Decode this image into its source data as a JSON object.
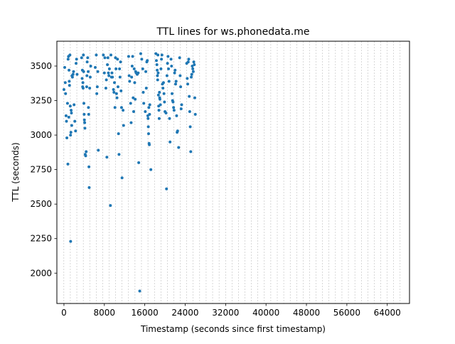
{
  "chart_data": {
    "type": "scatter",
    "title": "TTL lines for ws.phonedata.me",
    "xlabel": "Timestamp (seconds since first timestamp)",
    "ylabel": "TTL (seconds)",
    "xlim": [
      -1400,
      68400
    ],
    "ylim": [
      1780,
      3680
    ],
    "xticks": [
      0,
      8000,
      16000,
      24000,
      32000,
      40000,
      48000,
      56000,
      64000
    ],
    "xtick_labels": [
      "0",
      "8000",
      "16000",
      "24000",
      "32000",
      "40000",
      "48000",
      "56000",
      "64000"
    ],
    "yticks": [
      2000,
      2250,
      2500,
      2750,
      3000,
      3250,
      3500
    ],
    "ytick_labels": [
      "2000",
      "2250",
      "2500",
      "2750",
      "3000",
      "3250",
      "3500"
    ],
    "vlines": [
      -15,
      1265,
      2545,
      3825,
      5105,
      6385,
      7665,
      8945,
      10225,
      11505,
      12785,
      14065,
      15345,
      16625,
      17905,
      19185,
      20465,
      21745,
      23025,
      24305,
      25585,
      26865,
      28145,
      29425,
      30705,
      31985,
      33265,
      34545,
      35825,
      37105,
      38385,
      39665,
      40945,
      42225,
      43505,
      44785,
      46065,
      47345,
      48625,
      49905,
      51185,
      52465,
      53745,
      55025,
      56305,
      57585,
      58865,
      60145,
      61425,
      62705,
      63985,
      65265,
      66545
    ],
    "grid": "vertical dashed lines",
    "color": "#1f77b4",
    "points": [
      [
        0,
        3330
      ],
      [
        150,
        3490
      ],
      [
        260,
        3380
      ],
      [
        320,
        3300
      ],
      [
        420,
        3140
      ],
      [
        500,
        3100
      ],
      [
        580,
        2980
      ],
      [
        700,
        3230
      ],
      [
        780,
        2790
      ],
      [
        820,
        3550
      ],
      [
        900,
        3570
      ],
      [
        960,
        3130
      ],
      [
        1000,
        3470
      ],
      [
        1050,
        3390
      ],
      [
        1100,
        3360
      ],
      [
        1180,
        3580
      ],
      [
        1250,
        3210
      ],
      [
        1300,
        3000
      ],
      [
        1320,
        2230
      ],
      [
        1380,
        3020
      ],
      [
        1420,
        3180
      ],
      [
        1480,
        3160
      ],
      [
        1540,
        3070
      ],
      [
        1600,
        3430
      ],
      [
        1680,
        3420
      ],
      [
        1800,
        3440
      ],
      [
        1900,
        3460
      ],
      [
        2000,
        3220
      ],
      [
        2150,
        3100
      ],
      [
        2300,
        3030
      ],
      [
        2400,
        3520
      ],
      [
        2500,
        3550
      ],
      [
        2600,
        3440
      ],
      [
        3500,
        3560
      ],
      [
        3600,
        3410
      ],
      [
        3650,
        3470
      ],
      [
        3700,
        3350
      ],
      [
        3750,
        3380
      ],
      [
        3800,
        3340
      ],
      [
        3850,
        3580
      ],
      [
        3900,
        3460
      ],
      [
        3950,
        3230
      ],
      [
        4000,
        3150
      ],
      [
        4050,
        3110
      ],
      [
        4100,
        3090
      ],
      [
        4150,
        3050
      ],
      [
        4200,
        2860
      ],
      [
        4300,
        2850
      ],
      [
        4400,
        2880
      ],
      [
        4500,
        3350
      ],
      [
        4550,
        3430
      ],
      [
        4600,
        3530
      ],
      [
        4700,
        3560
      ],
      [
        4800,
        3460
      ],
      [
        4850,
        3200
      ],
      [
        4900,
        3150
      ],
      [
        4950,
        2770
      ],
      [
        5000,
        2620
      ],
      [
        5100,
        3340
      ],
      [
        5200,
        3420
      ],
      [
        5300,
        3500
      ],
      [
        6200,
        3490
      ],
      [
        6400,
        3580
      ],
      [
        6500,
        3300
      ],
      [
        6600,
        3350
      ],
      [
        6700,
        3460
      ],
      [
        6800,
        2890
      ],
      [
        7800,
        3580
      ],
      [
        8000,
        3450
      ],
      [
        8100,
        3560
      ],
      [
        8300,
        3340
      ],
      [
        8400,
        3400
      ],
      [
        8500,
        2840
      ],
      [
        8600,
        3510
      ],
      [
        8700,
        3560
      ],
      [
        8800,
        3450
      ],
      [
        8900,
        3430
      ],
      [
        9000,
        3480
      ],
      [
        9200,
        2490
      ],
      [
        9300,
        3580
      ],
      [
        9400,
        3420
      ],
      [
        9500,
        3450
      ],
      [
        9600,
        3420
      ],
      [
        9800,
        3330
      ],
      [
        9900,
        3310
      ],
      [
        10000,
        3380
      ],
      [
        10100,
        3200
      ],
      [
        10200,
        3560
      ],
      [
        10300,
        3480
      ],
      [
        10400,
        3300
      ],
      [
        10500,
        3270
      ],
      [
        10600,
        3550
      ],
      [
        10700,
        3350
      ],
      [
        10800,
        3010
      ],
      [
        10900,
        2860
      ],
      [
        11000,
        3480
      ],
      [
        11100,
        3420
      ],
      [
        11200,
        3530
      ],
      [
        11300,
        3320
      ],
      [
        11400,
        3200
      ],
      [
        11500,
        2690
      ],
      [
        11700,
        3180
      ],
      [
        11800,
        3070
      ],
      [
        12800,
        3570
      ],
      [
        12900,
        3430
      ],
      [
        13000,
        3390
      ],
      [
        13200,
        3230
      ],
      [
        13300,
        3090
      ],
      [
        13400,
        3420
      ],
      [
        13500,
        3500
      ],
      [
        13600,
        3570
      ],
      [
        13700,
        3270
      ],
      [
        13800,
        3170
      ],
      [
        13900,
        3480
      ],
      [
        14000,
        3380
      ],
      [
        14100,
        3260
      ],
      [
        14200,
        3460
      ],
      [
        14300,
        3450
      ],
      [
        14500,
        3440
      ],
      [
        14700,
        3450
      ],
      [
        14800,
        2800
      ],
      [
        15000,
        1870
      ],
      [
        15200,
        3590
      ],
      [
        15400,
        3550
      ],
      [
        15600,
        3480
      ],
      [
        15700,
        3310
      ],
      [
        15800,
        3230
      ],
      [
        16100,
        3170
      ],
      [
        16200,
        3460
      ],
      [
        16300,
        3340
      ],
      [
        16400,
        3530
      ],
      [
        16500,
        3540
      ],
      [
        16600,
        3140
      ],
      [
        16650,
        3120
      ],
      [
        16700,
        3060
      ],
      [
        16750,
        3010
      ],
      [
        16800,
        3200
      ],
      [
        16850,
        2940
      ],
      [
        16900,
        2930
      ],
      [
        16950,
        3150
      ],
      [
        17000,
        3220
      ],
      [
        17200,
        2750
      ],
      [
        18200,
        3590
      ],
      [
        18300,
        3540
      ],
      [
        18400,
        3510
      ],
      [
        18450,
        3470
      ],
      [
        18500,
        3430
      ],
      [
        18550,
        3400
      ],
      [
        18600,
        3580
      ],
      [
        18650,
        3450
      ],
      [
        18700,
        3290
      ],
      [
        18750,
        3210
      ],
      [
        18800,
        3180
      ],
      [
        18850,
        3120
      ],
      [
        18900,
        3310
      ],
      [
        18950,
        3270
      ],
      [
        19000,
        3260
      ],
      [
        19100,
        3220
      ],
      [
        19200,
        3480
      ],
      [
        19300,
        3550
      ],
      [
        19400,
        3580
      ],
      [
        19500,
        3370
      ],
      [
        19600,
        3340
      ],
      [
        19700,
        3380
      ],
      [
        19800,
        3300
      ],
      [
        19900,
        3240
      ],
      [
        20000,
        3170
      ],
      [
        20200,
        3160
      ],
      [
        20300,
        2610
      ],
      [
        20400,
        3430
      ],
      [
        20500,
        3520
      ],
      [
        20600,
        3570
      ],
      [
        20700,
        3480
      ],
      [
        20800,
        3390
      ],
      [
        20900,
        3120
      ],
      [
        21000,
        2950
      ],
      [
        21200,
        3550
      ],
      [
        21300,
        3500
      ],
      [
        21400,
        3300
      ],
      [
        21500,
        3250
      ],
      [
        21600,
        3240
      ],
      [
        21700,
        3200
      ],
      [
        21800,
        3180
      ],
      [
        21900,
        3450
      ],
      [
        22000,
        3470
      ],
      [
        22100,
        3370
      ],
      [
        22200,
        3390
      ],
      [
        22300,
        3140
      ],
      [
        22400,
        3020
      ],
      [
        22500,
        3030
      ],
      [
        22700,
        2910
      ],
      [
        22900,
        3560
      ],
      [
        23000,
        3430
      ],
      [
        23100,
        3350
      ],
      [
        23200,
        3190
      ],
      [
        23300,
        3220
      ],
      [
        24300,
        3520
      ],
      [
        24400,
        3410
      ],
      [
        24500,
        3370
      ],
      [
        24600,
        3530
      ],
      [
        24700,
        3550
      ],
      [
        24800,
        3280
      ],
      [
        24900,
        3170
      ],
      [
        25000,
        3060
      ],
      [
        25100,
        2880
      ],
      [
        25200,
        3420
      ],
      [
        25300,
        3440
      ],
      [
        25400,
        3500
      ],
      [
        25500,
        3480
      ],
      [
        25600,
        3460
      ],
      [
        25700,
        3530
      ],
      [
        25800,
        3510
      ],
      [
        25900,
        3270
      ],
      [
        26000,
        3150
      ]
    ]
  }
}
